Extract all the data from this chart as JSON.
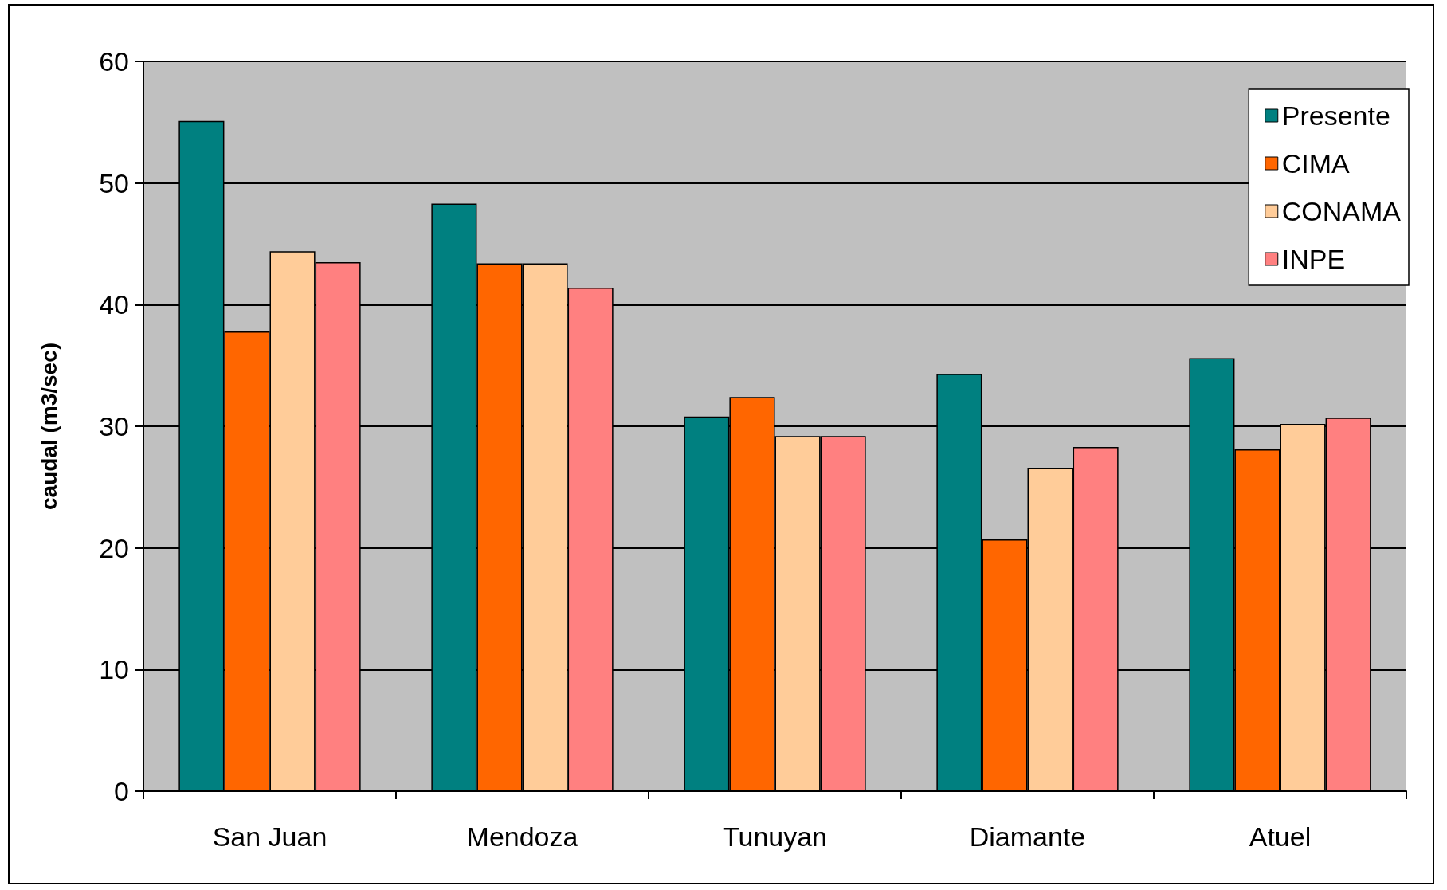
{
  "chart_data": {
    "type": "bar",
    "ylabel": "caudal (m3/sec)",
    "categories": [
      "San Juan",
      "Mendoza",
      "Tunuyan",
      "Diamante",
      "Atuel"
    ],
    "series": [
      {
        "name": "Presente",
        "color": "#008080",
        "values": [
          55.1,
          48.3,
          30.8,
          34.3,
          35.6
        ]
      },
      {
        "name": "CIMA",
        "color": "#ff6600",
        "values": [
          37.8,
          43.4,
          32.4,
          20.7,
          28.1
        ]
      },
      {
        "name": "CONAMA",
        "color": "#ffcc99",
        "values": [
          44.4,
          43.4,
          29.2,
          26.6,
          30.2
        ]
      },
      {
        "name": "INPE",
        "color": "#ff8080",
        "values": [
          43.5,
          41.4,
          29.2,
          28.3,
          30.7
        ]
      }
    ],
    "ylim": [
      0,
      60
    ],
    "yticks": [
      0,
      10,
      20,
      30,
      40,
      50,
      60
    ],
    "grid": "y",
    "legend": "top right"
  }
}
